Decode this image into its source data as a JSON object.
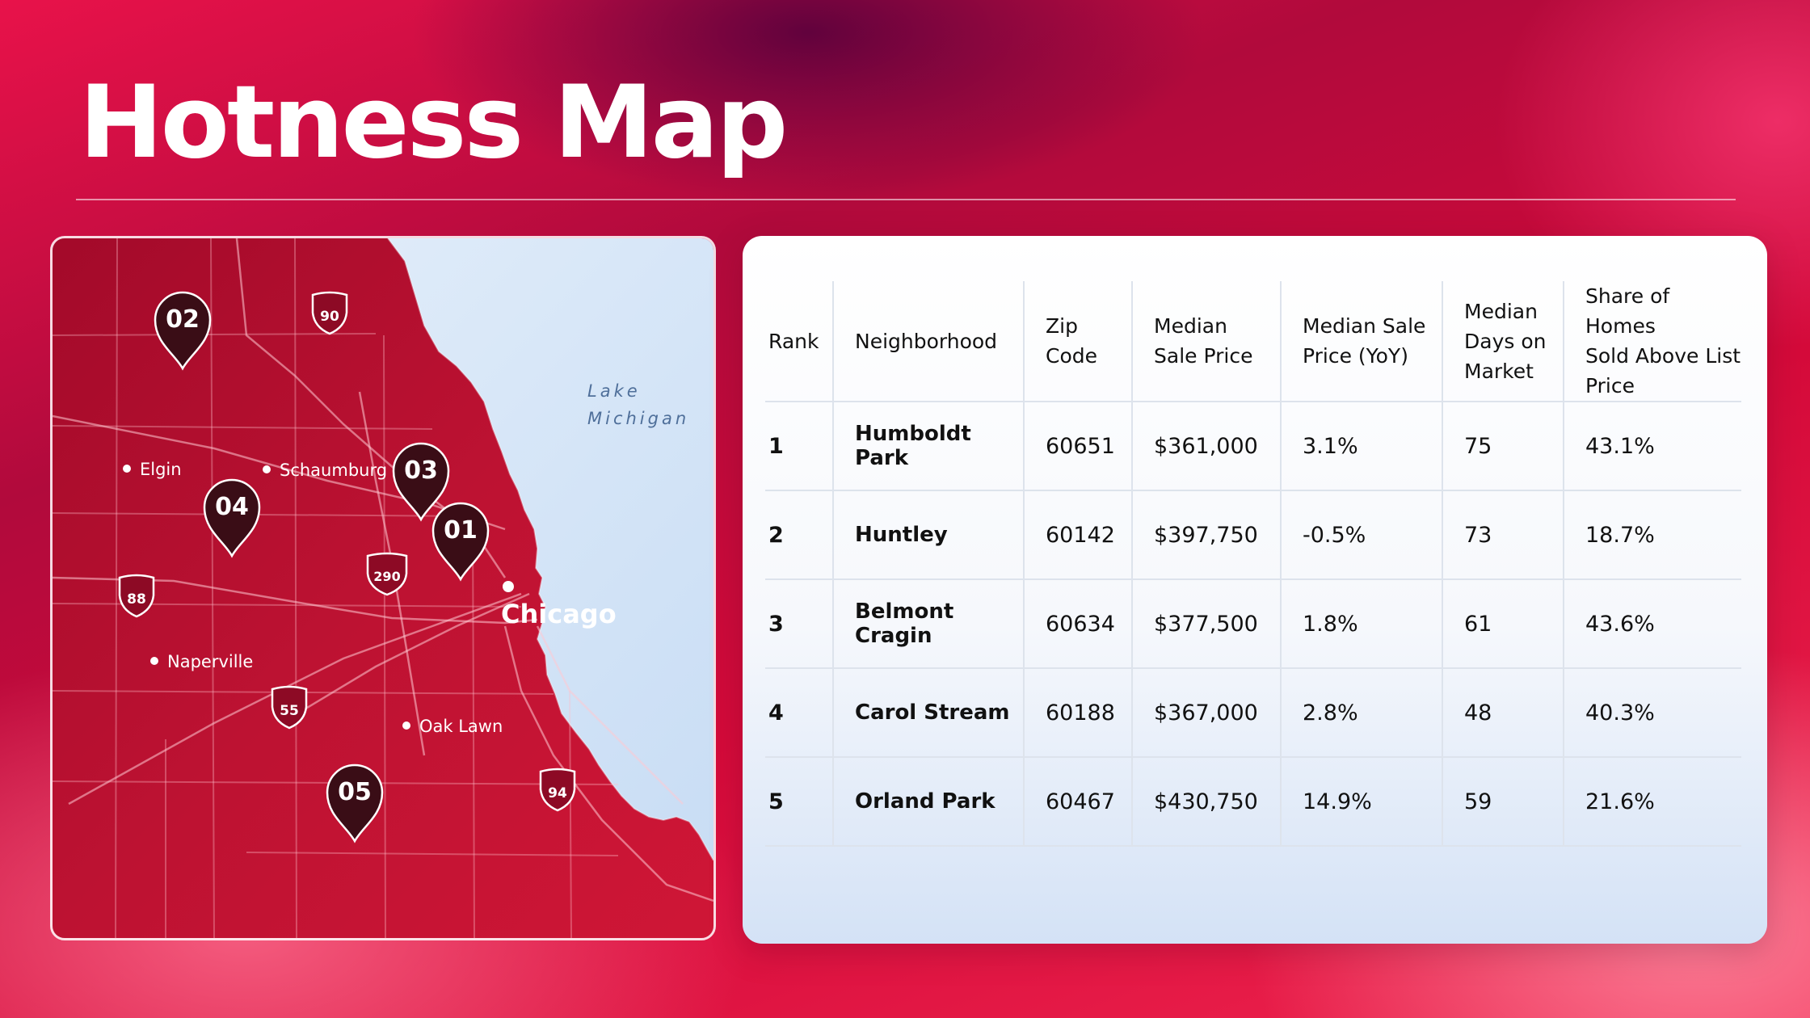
{
  "page": {
    "title": "Hotness Map"
  },
  "map": {
    "water_label_line1": "Lake",
    "water_label_line2": "Michigan",
    "city_label": "Chicago",
    "places": [
      {
        "key": "elgin",
        "label": "Elgin"
      },
      {
        "key": "schaumburg",
        "label": "Schaumburg"
      },
      {
        "key": "naperville",
        "label": "Naperville"
      },
      {
        "key": "oak_lawn",
        "label": "Oak Lawn"
      }
    ],
    "highways": [
      "90",
      "290",
      "88",
      "55",
      "94"
    ],
    "pins": [
      {
        "key": "01",
        "label": "01"
      },
      {
        "key": "02",
        "label": "02"
      },
      {
        "key": "03",
        "label": "03"
      },
      {
        "key": "04",
        "label": "04"
      },
      {
        "key": "05",
        "label": "05"
      }
    ],
    "colors": {
      "land": "#b8102f",
      "water": "#d5e5f8",
      "pin": "#3a0d16"
    }
  },
  "table": {
    "headers": {
      "rank": "Rank",
      "neighborhood": "Neighborhood",
      "zip1": "Zip",
      "zip2": "Code",
      "price1": "Median",
      "price2": "Sale Price",
      "yoy1": "Median Sale",
      "yoy2": "Price (YoY)",
      "dom1": "Median",
      "dom2": "Days on",
      "dom3": "Market",
      "share1": "Share of Homes",
      "share2": "Sold Above List",
      "share3": "Price"
    },
    "rows": [
      {
        "rank": "1",
        "neighborhood": "Humboldt Park",
        "zip": "60651",
        "price": "$361,000",
        "yoy": "3.1%",
        "dom": "75",
        "share": "43.1%"
      },
      {
        "rank": "2",
        "neighborhood": "Huntley",
        "zip": "60142",
        "price": "$397,750",
        "yoy": "-0.5%",
        "dom": "73",
        "share": "18.7%"
      },
      {
        "rank": "3",
        "neighborhood": "Belmont Cragin",
        "zip": "60634",
        "price": "$377,500",
        "yoy": "1.8%",
        "dom": "61",
        "share": "43.6%"
      },
      {
        "rank": "4",
        "neighborhood": "Carol Stream",
        "zip": "60188",
        "price": "$367,000",
        "yoy": "2.8%",
        "dom": "48",
        "share": "40.3%"
      },
      {
        "rank": "5",
        "neighborhood": "Orland Park",
        "zip": "60467",
        "price": "$430,750",
        "yoy": "14.9%",
        "dom": "59",
        "share": "21.6%"
      }
    ]
  }
}
